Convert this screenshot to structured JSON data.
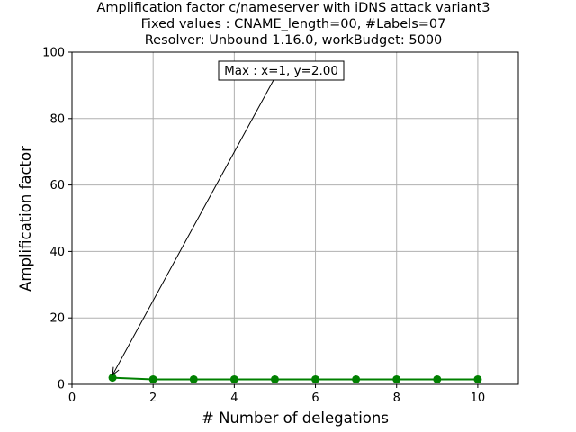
{
  "chart_data": {
    "type": "line",
    "title_lines": [
      "Amplification factor c/nameserver with iDNS attack variant3",
      "Fixed values : CNAME_length=00, #Labels=07",
      "Resolver: Unbound 1.16.0, workBudget: 5000"
    ],
    "xlabel": "# Number of delegations",
    "ylabel": "Amplification factor",
    "xlim": [
      0,
      11
    ],
    "ylim": [
      0,
      100
    ],
    "xticks": [
      0,
      2,
      4,
      6,
      8,
      10
    ],
    "yticks": [
      0,
      20,
      40,
      60,
      80,
      100
    ],
    "grid": true,
    "series": [
      {
        "color": "#008000",
        "marker": "circle",
        "x": [
          1,
          2,
          3,
          4,
          5,
          6,
          7,
          8,
          9,
          10
        ],
        "y": [
          2.0,
          1.5,
          1.5,
          1.5,
          1.5,
          1.5,
          1.5,
          1.5,
          1.5,
          1.5
        ]
      }
    ],
    "annotation": {
      "text": "Max : x=1, y=2.00",
      "x": 1,
      "y": 2.0
    }
  }
}
